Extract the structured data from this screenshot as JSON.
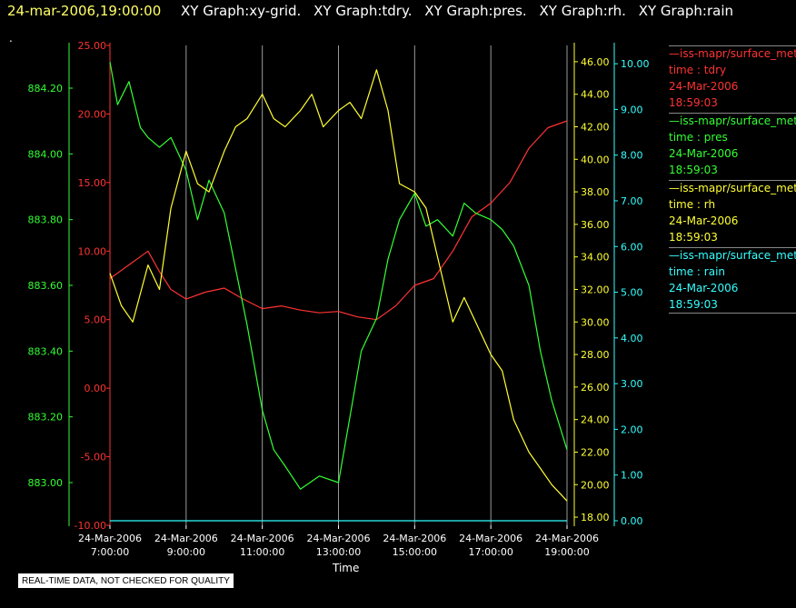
{
  "header": {
    "timestamp": "24-mar-2006,19:00:00",
    "tabs": [
      "XY Graph:xy-grid.",
      "XY Graph:tdry.",
      "XY Graph:pres.",
      "XY Graph:rh.",
      "XY Graph:rain"
    ]
  },
  "dot": ".",
  "disclaimer": "REAL-TIME DATA, NOT CHECKED FOR QUALITY",
  "chart_data": {
    "type": "line",
    "xlabel": "Time",
    "x_ticks": [
      {
        "date": "24-Mar-2006",
        "time": "7:00:00"
      },
      {
        "date": "24-Mar-2006",
        "time": "9:00:00"
      },
      {
        "date": "24-Mar-2006",
        "time": "11:00:00"
      },
      {
        "date": "24-Mar-2006",
        "time": "13:00:00"
      },
      {
        "date": "24-Mar-2006",
        "time": "15:00:00"
      },
      {
        "date": "24-Mar-2006",
        "time": "17:00:00"
      },
      {
        "date": "24-Mar-2006",
        "time": "19:00:00"
      }
    ],
    "x_hours": [
      7,
      9,
      11,
      13,
      15,
      17,
      19
    ],
    "xlim_hours": [
      7,
      19
    ],
    "grid": "vertical",
    "legend_placement": "right",
    "axes": {
      "tdry": {
        "color": "#ff3333",
        "ylim": [
          -10,
          25
        ],
        "ticks": [
          "-10.00",
          "-5.00",
          "0.00",
          "5.00",
          "10.00",
          "15.00",
          "20.00",
          "25.00"
        ],
        "tick_values": [
          -10,
          -5,
          0,
          5,
          10,
          15,
          20,
          25
        ]
      },
      "pres": {
        "color": "#33ff33",
        "ylim": [
          882.87,
          884.33
        ],
        "ticks": [
          "883.00",
          "883.20",
          "883.40",
          "883.60",
          "883.80",
          "884.00",
          "884.20"
        ],
        "tick_values": [
          883.0,
          883.2,
          883.4,
          883.6,
          883.8,
          884.0,
          884.2
        ]
      },
      "rh": {
        "color": "#ffff33",
        "ylim": [
          17.5,
          47
        ],
        "ticks": [
          "18.00",
          "20.00",
          "22.00",
          "24.00",
          "26.00",
          "28.00",
          "30.00",
          "32.00",
          "34.00",
          "36.00",
          "38.00",
          "40.00",
          "42.00",
          "44.00",
          "46.00"
        ],
        "tick_values": [
          18,
          20,
          22,
          24,
          26,
          28,
          30,
          32,
          34,
          36,
          38,
          40,
          42,
          44,
          46
        ]
      },
      "rain": {
        "color": "#33ffff",
        "ylim": [
          -0.1,
          10.4
        ],
        "ticks": [
          "0.00",
          "1.00",
          "2.00",
          "3.00",
          "4.00",
          "5.00",
          "6.00",
          "7.00",
          "8.00",
          "9.00",
          "10.00"
        ],
        "tick_values": [
          0,
          1,
          2,
          3,
          4,
          5,
          6,
          7,
          8,
          9,
          10
        ]
      }
    },
    "series": [
      {
        "key": "tdry",
        "color": "#ff3333",
        "x": [
          7.0,
          7.5,
          8.0,
          8.3,
          8.6,
          9.0,
          9.5,
          10.0,
          10.5,
          11.0,
          11.5,
          12.0,
          12.5,
          13.0,
          13.5,
          14.0,
          14.5,
          15.0,
          15.5,
          16.0,
          16.5,
          17.0,
          17.5,
          18.0,
          18.5,
          19.0
        ],
        "values": [
          8.0,
          9.0,
          10.0,
          8.5,
          7.2,
          6.5,
          7.0,
          7.3,
          6.5,
          5.8,
          6.0,
          5.7,
          5.5,
          5.6,
          5.2,
          5.0,
          6.0,
          7.5,
          8.0,
          10.0,
          12.5,
          13.5,
          15.0,
          17.5,
          19.0,
          19.5
        ]
      },
      {
        "key": "pres",
        "color": "#33ff33",
        "x": [
          7.0,
          7.2,
          7.5,
          7.8,
          8.0,
          8.3,
          8.6,
          9.0,
          9.3,
          9.6,
          10.0,
          10.3,
          10.6,
          11.0,
          11.3,
          11.6,
          12.0,
          12.5,
          13.0,
          13.3,
          13.6,
          14.0,
          14.3,
          14.6,
          15.0,
          15.3,
          15.6,
          16.0,
          16.3,
          16.6,
          17.0,
          17.3,
          17.6,
          18.0,
          18.3,
          18.6,
          19.0
        ],
        "values": [
          884.28,
          884.15,
          884.22,
          884.08,
          884.05,
          884.02,
          884.05,
          883.95,
          883.8,
          883.92,
          883.82,
          883.65,
          883.48,
          883.22,
          883.1,
          883.05,
          882.98,
          883.02,
          883.0,
          883.2,
          883.4,
          883.5,
          883.68,
          883.8,
          883.88,
          883.78,
          883.8,
          883.75,
          883.85,
          883.82,
          883.8,
          883.77,
          883.72,
          883.6,
          883.4,
          883.25,
          883.1
        ]
      },
      {
        "key": "rh",
        "color": "#ffff33",
        "x": [
          7.0,
          7.3,
          7.6,
          8.0,
          8.3,
          8.6,
          9.0,
          9.3,
          9.6,
          10.0,
          10.3,
          10.6,
          11.0,
          11.3,
          11.6,
          12.0,
          12.3,
          12.6,
          13.0,
          13.3,
          13.6,
          14.0,
          14.3,
          14.6,
          15.0,
          15.3,
          15.6,
          16.0,
          16.3,
          16.6,
          17.0,
          17.3,
          17.6,
          18.0,
          18.3,
          18.6,
          19.0
        ],
        "values": [
          33.0,
          31.0,
          30.0,
          33.5,
          32.0,
          37.0,
          40.5,
          38.5,
          38.0,
          40.5,
          42.0,
          42.5,
          44.0,
          42.5,
          42.0,
          43.0,
          44.0,
          42.0,
          43.0,
          43.5,
          42.5,
          45.5,
          43.0,
          38.5,
          38.0,
          37.0,
          34.0,
          30.0,
          31.5,
          30.0,
          28.0,
          27.0,
          24.0,
          22.0,
          21.0,
          20.0,
          19.0
        ]
      },
      {
        "key": "rain",
        "color": "#33ffff",
        "x": [
          7.0,
          19.0
        ],
        "values": [
          0.0,
          0.0
        ]
      }
    ],
    "legend": [
      {
        "name": "—iss-mapr/surface_met",
        "var": "time : tdry",
        "date": "24-Mar-2006",
        "time": "18:59:03",
        "color": "#ff3333"
      },
      {
        "name": "—iss-mapr/surface_met",
        "var": "time : pres",
        "date": "24-Mar-2006",
        "time": "18:59:03",
        "color": "#33ff33"
      },
      {
        "name": "—iss-mapr/surface_met",
        "var": "time : rh",
        "date": "24-Mar-2006",
        "time": "18:59:03",
        "color": "#ffff33"
      },
      {
        "name": "—iss-mapr/surface_met",
        "var": "time : rain",
        "date": "24-Mar-2006",
        "time": "18:59:03",
        "color": "#33ffff"
      }
    ]
  }
}
